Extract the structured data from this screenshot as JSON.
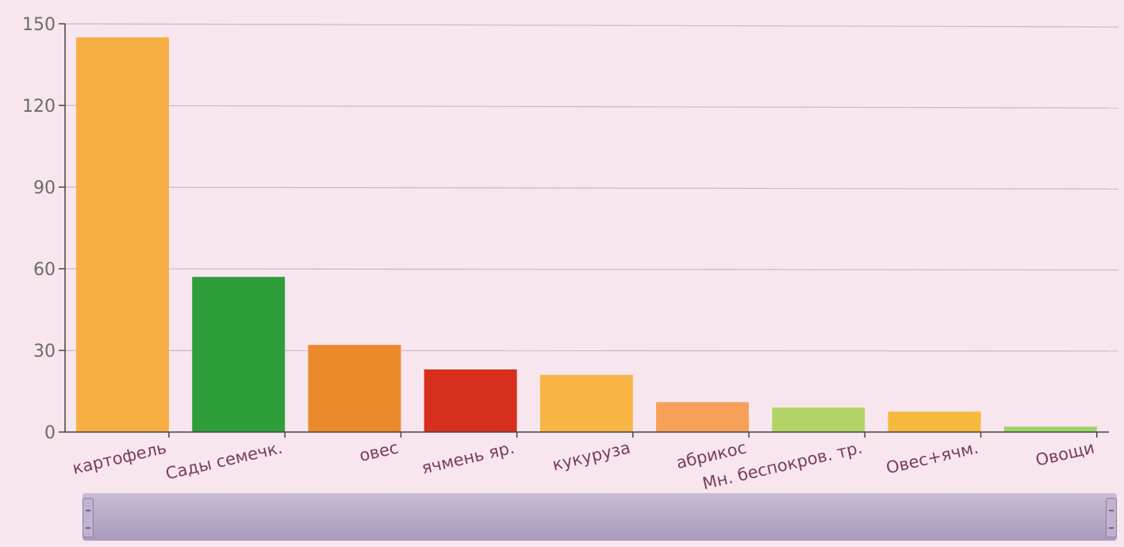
{
  "chart_data": {
    "type": "bar",
    "categories": [
      "картофель",
      "Сады семечк.",
      "овес",
      "ячмень яр.",
      "кукуруза",
      "абрикос",
      "Мн. беспокров. тр.",
      "Овес+ячм.",
      "Овощи"
    ],
    "values": [
      145,
      57,
      32,
      23,
      21,
      11,
      9,
      7.5,
      2
    ],
    "colors": [
      "#f7ae45",
      "#2e9e3a",
      "#eb8a2c",
      "#d62f1e",
      "#f8b545",
      "#f5a15a",
      "#b2d466",
      "#f5b93e",
      "#9fd46a"
    ],
    "yticks": [
      0,
      30,
      60,
      90,
      120,
      150
    ],
    "ylim": [
      0,
      150
    ],
    "grid": true
  },
  "scrollbar": {
    "left_icon": "scroll-handle-icon",
    "right_icon": "scroll-handle-icon"
  }
}
